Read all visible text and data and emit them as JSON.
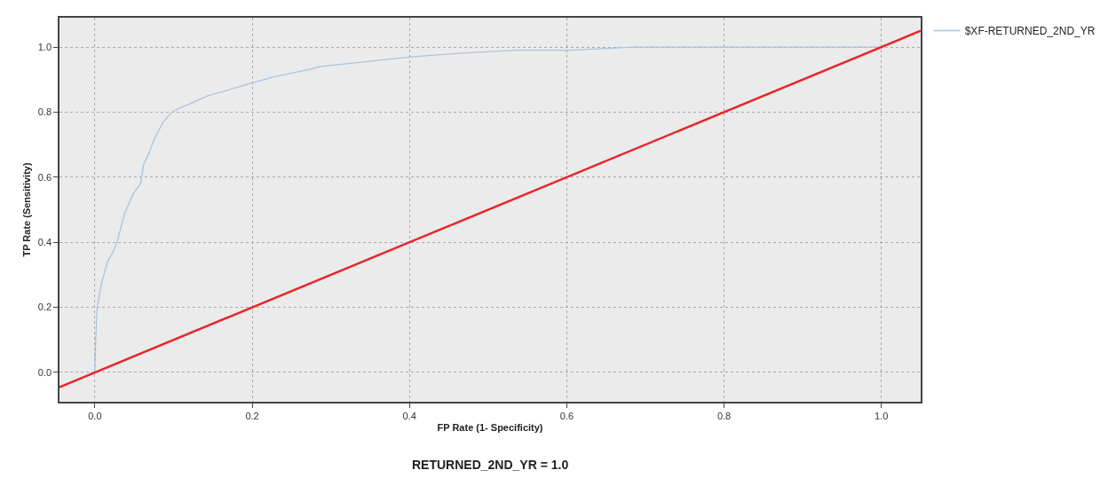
{
  "chart_data": {
    "type": "line",
    "xlabel": "FP Rate (1- Specificity)",
    "ylabel": "TP Rate (Sensitivity)",
    "annotations": [
      "RETURNED_2ND_YR = 1.0"
    ],
    "series": [
      {
        "name": "$XF-RETURNED_2ND_YR",
        "color": "#a9c4dc",
        "x": [
          0,
          0.001,
          0.003,
          0.008,
          0.016,
          0.023,
          0.028,
          0.038,
          0.049,
          0.058,
          0.062,
          0.068,
          0.076,
          0.087,
          0.098,
          0.106,
          0.125,
          0.143,
          0.173,
          0.2,
          0.23,
          0.271,
          0.286,
          0.365,
          0.402,
          0.459,
          0.534,
          0.604,
          0.685,
          0.794,
          1.0
        ],
        "values": [
          0,
          0.1,
          0.2,
          0.27,
          0.34,
          0.37,
          0.4,
          0.49,
          0.55,
          0.58,
          0.64,
          0.67,
          0.72,
          0.77,
          0.8,
          0.81,
          0.83,
          0.85,
          0.87,
          0.89,
          0.91,
          0.93,
          0.94,
          0.96,
          0.97,
          0.98,
          0.99,
          0.99,
          1.0,
          1.0,
          1.0
        ]
      },
      {
        "type": "line",
        "color": "#e8262b",
        "x": [
          -0.045,
          1.05
        ],
        "values": [
          -0.045,
          1.05
        ]
      }
    ],
    "xlim": [
      -0.045,
      1.05
    ],
    "ylim": [
      -0.09,
      1.09
    ],
    "xticks": [
      {
        "value": 0,
        "label": "0.0"
      },
      0.2,
      0.4,
      0.6,
      0.8,
      {
        "value": 1,
        "label": "1.0"
      }
    ],
    "yticks": [
      {
        "value": 0,
        "label": "0.0"
      },
      0.2,
      0.4,
      0.6,
      0.8,
      {
        "value": 1,
        "label": "1.0"
      }
    ],
    "grid": true,
    "legend": "top right",
    "line_style": "solid",
    "marker": "none"
  }
}
